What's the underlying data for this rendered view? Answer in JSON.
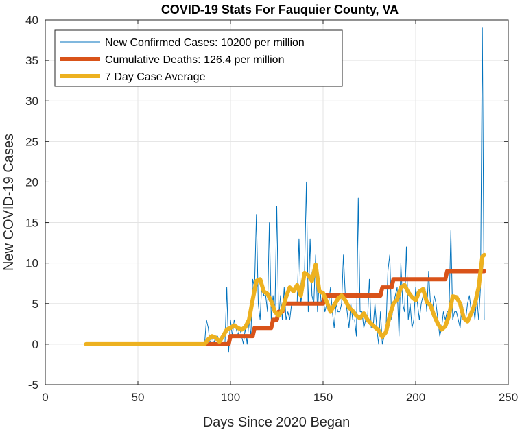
{
  "chart_data": {
    "type": "line",
    "title": "COVID-19 Stats For Fauquier County, VA",
    "xlabel": "Days Since 2020 Began",
    "ylabel": "New COVID-19 Cases",
    "xlim": [
      0,
      250
    ],
    "ylim": [
      -5,
      40
    ],
    "xticks": [
      0,
      50,
      100,
      150,
      200,
      250
    ],
    "yticks": [
      -5,
      0,
      5,
      10,
      15,
      20,
      25,
      30,
      35,
      40
    ],
    "grid": true,
    "legend_position": "top-left",
    "series": [
      {
        "name": "New Confirmed Cases: 10200 per million",
        "color": "#0072BD",
        "style": "thin",
        "x": [
          22,
          30,
          40,
          50,
          60,
          70,
          80,
          86,
          87,
          88,
          89,
          90,
          91,
          92,
          93,
          94,
          95,
          96,
          97,
          98,
          99,
          100,
          101,
          102,
          103,
          104,
          105,
          106,
          107,
          108,
          109,
          110,
          111,
          112,
          113,
          114,
          115,
          116,
          117,
          118,
          119,
          120,
          121,
          122,
          123,
          124,
          125,
          126,
          127,
          128,
          129,
          130,
          131,
          132,
          133,
          134,
          135,
          136,
          137,
          138,
          139,
          140,
          141,
          142,
          143,
          144,
          145,
          146,
          147,
          148,
          149,
          150,
          151,
          152,
          153,
          154,
          155,
          156,
          157,
          158,
          159,
          160,
          161,
          162,
          163,
          164,
          165,
          166,
          167,
          168,
          169,
          170,
          171,
          172,
          173,
          174,
          175,
          176,
          177,
          178,
          179,
          180,
          181,
          182,
          183,
          184,
          185,
          186,
          187,
          188,
          189,
          190,
          191,
          192,
          193,
          194,
          195,
          196,
          197,
          198,
          199,
          200,
          201,
          202,
          203,
          204,
          205,
          206,
          207,
          208,
          209,
          210,
          211,
          212,
          213,
          214,
          215,
          216,
          217,
          218,
          219,
          220,
          221,
          222,
          223,
          224,
          225,
          226,
          227,
          228,
          229,
          230,
          231,
          232,
          233,
          234,
          235,
          236,
          237
        ],
        "y": [
          0,
          0,
          0,
          0,
          0,
          0,
          0,
          0,
          3,
          2,
          0,
          1,
          0,
          1,
          1,
          0,
          0,
          0,
          0,
          7,
          -1,
          3,
          1,
          3,
          2,
          1,
          2,
          1,
          0,
          2,
          0,
          3,
          1,
          8,
          7,
          16,
          5,
          3,
          8,
          6,
          6,
          4,
          15,
          3,
          6,
          4,
          17,
          3,
          6,
          3,
          7,
          3,
          4,
          3,
          5,
          5,
          5,
          5,
          13,
          5,
          7,
          9,
          20,
          4,
          13,
          6,
          5,
          11,
          4,
          8,
          5,
          6,
          4,
          5,
          5,
          7,
          4,
          2,
          5,
          4,
          4,
          5,
          11,
          6,
          4,
          2,
          5,
          3,
          3,
          1,
          18,
          4,
          4,
          2,
          3,
          3,
          8,
          2,
          2,
          5,
          2,
          0,
          4,
          0,
          1,
          2,
          9,
          11,
          3,
          5,
          6,
          7,
          1,
          10,
          5,
          4,
          12,
          3,
          5,
          2,
          3,
          7,
          5,
          3,
          5,
          6,
          7,
          4,
          9,
          5,
          4,
          6,
          5,
          3,
          1,
          2,
          4,
          3,
          4,
          4,
          14,
          3,
          4,
          4,
          3,
          2,
          5,
          4,
          3,
          5,
          6,
          4,
          5,
          3,
          6,
          3,
          7,
          39,
          3
        ],
        "thin_note": ""
      },
      {
        "name": "Cumulative Deaths: 126.4 per million",
        "color": "#D95319",
        "style": "thick",
        "x": [
          86,
          99,
          100,
          112,
          113,
          122,
          123,
          125,
          126,
          128,
          129,
          150,
          151,
          181,
          182,
          187,
          188,
          216,
          217,
          237
        ],
        "y": [
          0,
          0,
          1,
          1,
          2,
          2,
          3,
          3,
          4,
          4,
          5,
          5,
          6,
          6,
          7,
          7,
          8,
          8,
          9,
          9
        ]
      },
      {
        "name": "7 Day Case Average",
        "color": "#EDB120",
        "style": "thick",
        "x": [
          22,
          30,
          40,
          50,
          60,
          70,
          80,
          86,
          88,
          90,
          92,
          94,
          96,
          98,
          100,
          102,
          104,
          106,
          108,
          110,
          112,
          114,
          116,
          118,
          120,
          122,
          124,
          126,
          128,
          130,
          132,
          134,
          136,
          138,
          140,
          142,
          144,
          146,
          148,
          150,
          152,
          154,
          156,
          158,
          160,
          162,
          164,
          166,
          168,
          170,
          172,
          174,
          176,
          178,
          180,
          182,
          184,
          186,
          188,
          190,
          192,
          194,
          196,
          198,
          200,
          202,
          204,
          206,
          208,
          210,
          212,
          214,
          216,
          218,
          220,
          222,
          224,
          226,
          228,
          230,
          232,
          234,
          236,
          237
        ],
        "y": [
          0,
          0,
          0,
          0,
          0,
          0,
          0,
          0,
          0.6,
          1,
          0.8,
          0.3,
          1,
          1.8,
          2,
          2.3,
          2,
          1.8,
          2.1,
          3,
          5.5,
          7.8,
          8,
          6.5,
          6.2,
          5.3,
          4,
          3.5,
          4.2,
          5.8,
          7,
          6.5,
          7.3,
          6,
          8.8,
          8.5,
          7.8,
          9.8,
          6.5,
          6.3,
          5.2,
          4,
          4.8,
          5.6,
          6,
          5.4,
          4.5,
          4.1,
          3.5,
          3.2,
          3.8,
          3,
          2.5,
          2.1,
          1.7,
          0.9,
          1.5,
          3.5,
          5,
          5.5,
          7,
          7.3,
          6.4,
          5.8,
          5.4,
          6.5,
          6.8,
          5.2,
          4.8,
          3.5,
          2.5,
          1.8,
          2.2,
          3.5,
          5.9,
          5.8,
          5,
          3.2,
          2.8,
          3.8,
          5,
          7,
          10.8,
          11
        ]
      }
    ]
  }
}
